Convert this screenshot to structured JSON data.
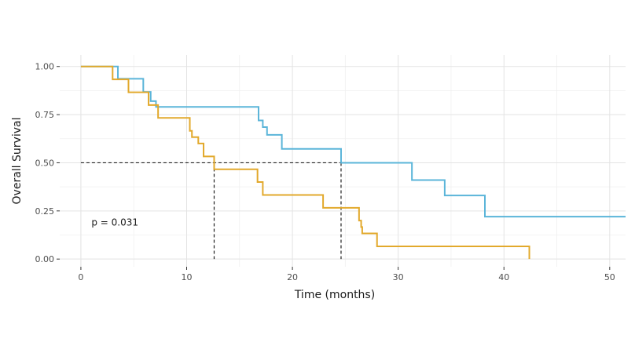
{
  "chart_data": {
    "type": "line",
    "subtype": "kaplan-meier-step",
    "xlabel": "Time (months)",
    "ylabel": "Overall Survival",
    "xlim": [
      -2,
      51.5
    ],
    "ylim": [
      -0.04,
      1.06
    ],
    "xticks": [
      0,
      10,
      20,
      30,
      40,
      50
    ],
    "yticks": [
      0.0,
      0.25,
      0.5,
      0.75,
      1.0
    ],
    "xtick_labels": [
      "0",
      "10",
      "20",
      "30",
      "40",
      "50"
    ],
    "ytick_labels": [
      "0.00",
      "0.25",
      "0.50",
      "0.75",
      "1.00"
    ],
    "grid": true,
    "annotation": "p = 0.031",
    "series": [
      {
        "color": "#5BB5D9",
        "x": [
          0,
          3.5,
          5.9,
          6.6,
          7.1,
          16.8,
          17.2,
          17.6,
          19.0,
          24.6,
          31.3,
          34.4,
          38.2,
          51.5
        ],
        "y": [
          1.0,
          0.936,
          0.868,
          0.82,
          0.79,
          0.72,
          0.685,
          0.645,
          0.572,
          0.5,
          0.41,
          0.33,
          0.22,
          0.22
        ]
      },
      {
        "color": "#E2A92C",
        "x": [
          0,
          3.0,
          4.5,
          6.4,
          7.3,
          10.3,
          10.5,
          11.1,
          11.6,
          12.6,
          16.7,
          17.2,
          22.9,
          26.3,
          26.5,
          26.6,
          28.0,
          42.4
        ],
        "y": [
          1.0,
          0.933,
          0.866,
          0.8,
          0.733,
          0.666,
          0.633,
          0.6,
          0.533,
          0.466,
          0.4,
          0.333,
          0.266,
          0.2,
          0.166,
          0.133,
          0.066,
          0.0
        ]
      }
    ],
    "median_lines": [
      {
        "x": 12.6,
        "y": 0.5
      },
      {
        "x": 24.6,
        "y": 0.5
      }
    ],
    "annotation_pos": {
      "x": 1.0,
      "y": 0.19
    }
  }
}
